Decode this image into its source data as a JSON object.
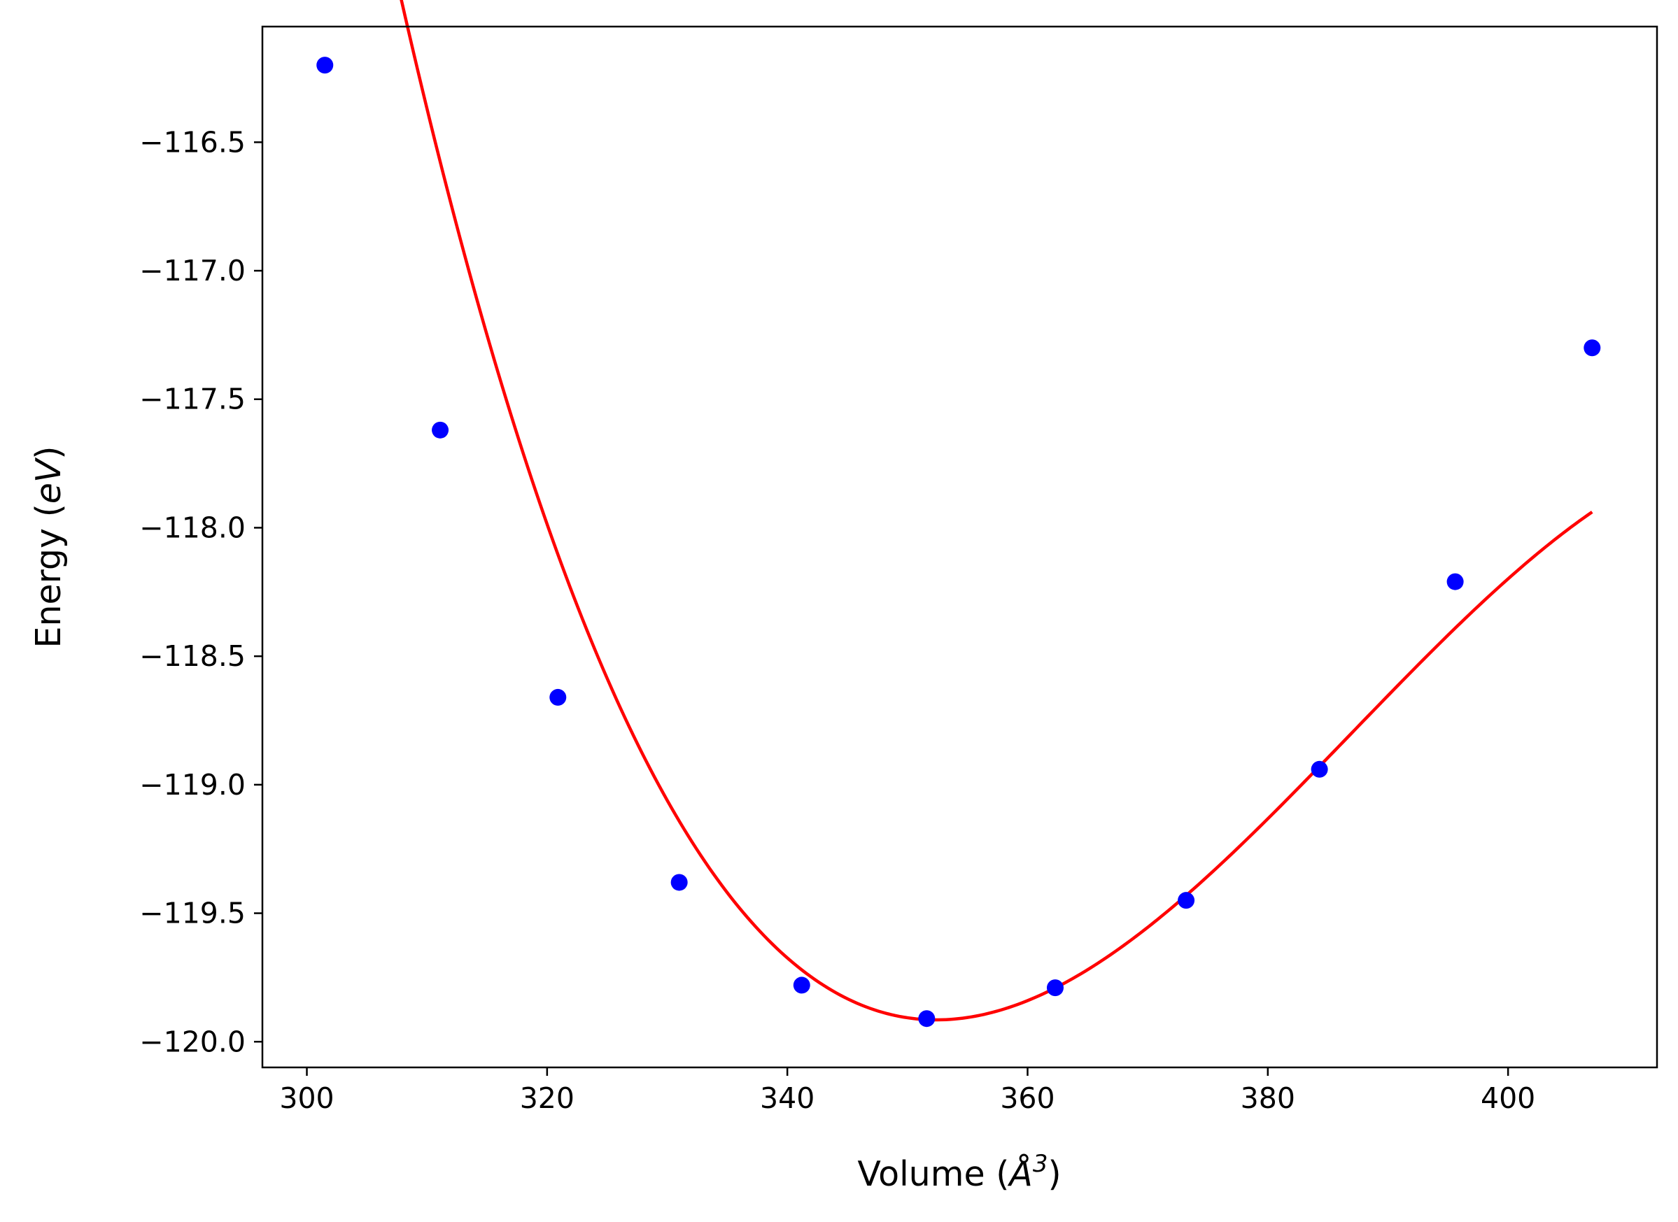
{
  "chart_data": {
    "type": "scatter",
    "xlabel": "Volume (",
    "xlabel_symbol": "Å",
    "xlabel_exponent": "3",
    "xlabel_close": ")",
    "ylabel": "Energy (",
    "ylabel_unit": "eV",
    "ylabel_close": ")",
    "xlim": [
      296.3,
      412.4
    ],
    "ylim": [
      -120.1,
      -116.05
    ],
    "xticks": [
      300,
      320,
      340,
      360,
      380,
      400
    ],
    "yticks": [
      -120.0,
      -119.5,
      -119.0,
      -118.5,
      -118.0,
      -117.5,
      -117.0,
      -116.5
    ],
    "ytick_labels": [
      "−120.0",
      "−119.5",
      "−119.0",
      "−118.5",
      "−118.0",
      "−117.5",
      "−117.0",
      "−116.5"
    ],
    "grid": false,
    "series": [
      {
        "kind": "points",
        "color": "#0000ff",
        "x": [
          301.5,
          311.1,
          320.9,
          331.0,
          341.2,
          351.6,
          362.3,
          373.2,
          384.3,
          395.6,
          407.0
        ],
        "y": [
          -116.2,
          -117.62,
          -118.66,
          -119.38,
          -119.78,
          -119.91,
          -119.79,
          -119.45,
          -118.94,
          -118.21,
          -117.3
        ]
      },
      {
        "kind": "fit-curve",
        "color": "#ff0000",
        "fit_minimum_x": 352.4,
        "fit_minimum_y": -119.915,
        "fit_curvature": 0.0014,
        "fit_skew": 1.35e-05
      }
    ]
  }
}
